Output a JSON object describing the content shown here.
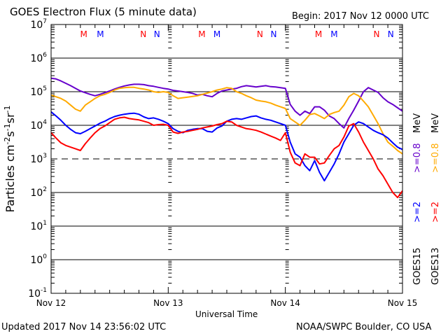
{
  "header": {
    "title": "GOES Electron Flux (5 minute data)",
    "begin": "Begin: 2017 Nov 12 0000 UTC"
  },
  "footer": {
    "updated": "Updated 2017 Nov 14 23:56:02 UTC",
    "credit": "NOAA/SWPC Boulder, CO USA"
  },
  "chart_data": {
    "type": "line",
    "title": "GOES Electron Flux (5 minute data)",
    "xlabel": "Universal Time",
    "ylabel": "Particles cm^-2 s^-1 sr^-1",
    "yscale": "log",
    "ylim_log10": [
      -1,
      7
    ],
    "xlim_hours": [
      0,
      72
    ],
    "x_unit": "hours since 2017 Nov 12 0000 UTC",
    "x_ticks": [
      {
        "hour": 0,
        "label": "Nov 12"
      },
      {
        "hour": 24,
        "label": "Nov 13"
      },
      {
        "hour": 48,
        "label": "Nov 14"
      },
      {
        "hour": 72,
        "label": "Nov 15"
      }
    ],
    "y_ticks": [
      {
        "exp": 7,
        "label": "10",
        "sup": "7"
      },
      {
        "exp": 6,
        "label": "10",
        "sup": "6"
      },
      {
        "exp": 5,
        "label": "10",
        "sup": "5"
      },
      {
        "exp": 4,
        "label": "10",
        "sup": "4"
      },
      {
        "exp": 3,
        "label": "10",
        "sup": "3"
      },
      {
        "exp": 2,
        "label": "10",
        "sup": "2"
      },
      {
        "exp": 1,
        "label": "10",
        "sup": "1"
      },
      {
        "exp": 0,
        "label": "10",
        "sup": "0"
      },
      {
        "exp": -1,
        "label": "10",
        "sup": "-1"
      }
    ],
    "solid_gridlines_log10": [
      6,
      5,
      4,
      2,
      1,
      0
    ],
    "dashed_threshold_log10": 3,
    "mn_markers": [
      {
        "hour": 6.7,
        "label": "M",
        "color": "#ff0000"
      },
      {
        "hour": 10.1,
        "label": "M",
        "color": "#0000ff"
      },
      {
        "hour": 18.9,
        "label": "N",
        "color": "#ff0000"
      },
      {
        "hour": 21.7,
        "label": "N",
        "color": "#0000ff"
      },
      {
        "hour": 30.9,
        "label": "M",
        "color": "#ff0000"
      },
      {
        "hour": 34.0,
        "label": "M",
        "color": "#0000ff"
      },
      {
        "hour": 42.8,
        "label": "N",
        "color": "#ff0000"
      },
      {
        "hour": 45.6,
        "label": "N",
        "color": "#0000ff"
      },
      {
        "hour": 54.8,
        "label": "M",
        "color": "#ff0000"
      },
      {
        "hour": 58.0,
        "label": "M",
        "color": "#0000ff"
      },
      {
        "hour": 66.7,
        "label": "N",
        "color": "#ff0000"
      },
      {
        "hour": 69.6,
        "label": "N",
        "color": "#0000ff"
      }
    ],
    "legend": {
      "placement": "right-vertical",
      "entries": [
        {
          "text": ">=0.8 MeV",
          "satellite": "GOES15",
          "color": "#6600cc"
        },
        {
          "text": ">=0.8 MeV",
          "satellite": "GOES13",
          "color": "#ffaa00"
        },
        {
          "text": ">=2 MeV",
          "satellite": "GOES15",
          "color": "#0000ff"
        },
        {
          "text": ">=2 MeV",
          "satellite": "GOES13",
          "color": "#ff0000"
        }
      ],
      "labels": {
        "mev1": "MeV",
        "mev2": "MeV",
        "e08a": ">=0.8",
        "e08b": ">=0.8",
        "e2a": ">=2",
        "e2b": ">=2",
        "sat15": "GOES15",
        "sat13": "GOES13"
      }
    },
    "series": [
      {
        "name": "GOES15 >=0.8 MeV",
        "color": "#6600cc",
        "hours": [
          0,
          1,
          2,
          3,
          4,
          5,
          6,
          7,
          8,
          9,
          10,
          11,
          12,
          13,
          14,
          15,
          16,
          17,
          18,
          19,
          20,
          21,
          22,
          23,
          24,
          25,
          26,
          27,
          28,
          29,
          30,
          31,
          32,
          33,
          34,
          35,
          36,
          37,
          38,
          39,
          40,
          41,
          42,
          43,
          44,
          45,
          46,
          47,
          48,
          49,
          50,
          51,
          52,
          53,
          54,
          55,
          56,
          57,
          58,
          59,
          60,
          61,
          62,
          63,
          64,
          65,
          66,
          67,
          68,
          69,
          70,
          71,
          72
        ],
        "log10": [
          5.4,
          5.38,
          5.32,
          5.25,
          5.18,
          5.1,
          5.02,
          4.97,
          4.92,
          4.88,
          4.92,
          4.97,
          5.02,
          5.08,
          5.13,
          5.17,
          5.2,
          5.22,
          5.22,
          5.21,
          5.18,
          5.16,
          5.13,
          5.1,
          5.08,
          5.04,
          5.02,
          5.0,
          4.98,
          4.95,
          4.9,
          4.92,
          4.88,
          4.85,
          4.95,
          5.02,
          5.05,
          5.08,
          5.1,
          5.15,
          5.18,
          5.16,
          5.14,
          5.16,
          5.18,
          5.15,
          5.14,
          5.12,
          5.1,
          4.62,
          4.42,
          4.3,
          4.42,
          4.35,
          4.55,
          4.55,
          4.45,
          4.28,
          4.2,
          4.05,
          3.92,
          4.2,
          4.45,
          4.72,
          5.0,
          5.12,
          5.05,
          4.98,
          4.82,
          4.7,
          4.62,
          4.52,
          4.42
        ]
      },
      {
        "name": "GOES13 >=0.8 MeV",
        "color": "#ffaa00",
        "hours": [
          0,
          1,
          2,
          3,
          4,
          5,
          6,
          7,
          8,
          9,
          10,
          11,
          12,
          13,
          14,
          15,
          16,
          17,
          18,
          19,
          20,
          21,
          22,
          23,
          24,
          25,
          26,
          27,
          28,
          29,
          30,
          31,
          32,
          33,
          34,
          35,
          36,
          37,
          38,
          39,
          40,
          41,
          42,
          43,
          44,
          45,
          46,
          47,
          48,
          49,
          50,
          51,
          52,
          53,
          54,
          55,
          56,
          57,
          58,
          59,
          60,
          61,
          62,
          63,
          64,
          65,
          66,
          67,
          68,
          69,
          70,
          71,
          72
        ],
        "log10": [
          4.9,
          4.85,
          4.8,
          4.72,
          4.6,
          4.48,
          4.42,
          4.6,
          4.7,
          4.8,
          4.88,
          4.92,
          4.98,
          5.05,
          5.1,
          5.12,
          5.13,
          5.13,
          5.1,
          5.08,
          5.05,
          5.0,
          4.98,
          5.0,
          4.98,
          4.88,
          4.8,
          4.82,
          4.84,
          4.86,
          4.88,
          4.92,
          4.96,
          5.0,
          5.05,
          5.08,
          5.12,
          5.1,
          5.0,
          4.95,
          4.88,
          4.82,
          4.75,
          4.72,
          4.7,
          4.66,
          4.6,
          4.55,
          4.5,
          4.2,
          4.1,
          4.0,
          4.15,
          4.32,
          4.35,
          4.28,
          4.2,
          4.32,
          4.38,
          4.42,
          4.6,
          4.85,
          4.95,
          4.88,
          4.72,
          4.55,
          4.3,
          4.05,
          3.75,
          3.5,
          3.38,
          3.25,
          3.15
        ]
      },
      {
        "name": "GOES15 >=2 MeV",
        "color": "#0000ff",
        "hours": [
          0,
          1,
          2,
          3,
          4,
          5,
          6,
          7,
          8,
          9,
          10,
          11,
          12,
          13,
          14,
          15,
          16,
          17,
          18,
          19,
          20,
          21,
          22,
          23,
          24,
          25,
          26,
          27,
          28,
          29,
          30,
          31,
          32,
          33,
          34,
          35,
          36,
          37,
          38,
          39,
          40,
          41,
          42,
          43,
          44,
          45,
          46,
          47,
          48,
          49,
          50,
          51,
          52,
          53,
          54,
          55,
          56,
          57,
          58,
          59,
          60,
          61,
          62,
          63,
          64,
          65,
          66,
          67,
          68,
          69,
          70,
          71,
          72
        ],
        "log10": [
          4.4,
          4.28,
          4.15,
          4.0,
          3.88,
          3.78,
          3.75,
          3.82,
          3.9,
          3.98,
          4.06,
          4.12,
          4.2,
          4.26,
          4.3,
          4.33,
          4.35,
          4.36,
          4.33,
          4.25,
          4.2,
          4.22,
          4.18,
          4.12,
          4.05,
          3.9,
          3.82,
          3.78,
          3.85,
          3.88,
          3.9,
          3.9,
          3.82,
          3.8,
          3.92,
          3.98,
          4.12,
          4.18,
          4.2,
          4.18,
          4.22,
          4.26,
          4.28,
          4.22,
          4.18,
          4.15,
          4.1,
          4.05,
          4.0,
          3.5,
          3.15,
          3.05,
          2.8,
          2.65,
          2.95,
          2.6,
          2.35,
          2.6,
          2.85,
          3.15,
          3.5,
          3.75,
          4.0,
          4.1,
          4.05,
          3.95,
          3.85,
          3.78,
          3.72,
          3.62,
          3.48,
          3.35,
          3.28
        ]
      },
      {
        "name": "GOES13 >=2 MeV",
        "color": "#ff0000",
        "hours": [
          0,
          1,
          2,
          3,
          4,
          5,
          6,
          7,
          8,
          9,
          10,
          11,
          12,
          13,
          14,
          15,
          16,
          17,
          18,
          19,
          20,
          21,
          22,
          23,
          24,
          25,
          26,
          27,
          28,
          29,
          30,
          31,
          32,
          33,
          34,
          35,
          36,
          37,
          38,
          39,
          40,
          41,
          42,
          43,
          44,
          45,
          46,
          47,
          48,
          49,
          50,
          51,
          52,
          53,
          54,
          55,
          56,
          57,
          58,
          59,
          60,
          61,
          62,
          63,
          64,
          65,
          66,
          67,
          68,
          69,
          70,
          71,
          72
        ],
        "log10": [
          3.78,
          3.62,
          3.48,
          3.4,
          3.35,
          3.3,
          3.25,
          3.45,
          3.62,
          3.78,
          3.9,
          3.98,
          4.08,
          4.18,
          4.22,
          4.24,
          4.2,
          4.18,
          4.16,
          4.12,
          4.08,
          4.0,
          4.02,
          4.03,
          4.0,
          3.8,
          3.76,
          3.8,
          3.82,
          3.85,
          3.88,
          3.92,
          3.95,
          3.98,
          4.02,
          4.05,
          4.12,
          4.1,
          4.0,
          3.95,
          3.9,
          3.88,
          3.85,
          3.8,
          3.74,
          3.68,
          3.62,
          3.55,
          3.78,
          3.2,
          2.88,
          2.8,
          3.15,
          3.05,
          3.05,
          2.85,
          2.88,
          3.1,
          3.3,
          3.4,
          3.65,
          3.98,
          4.05,
          3.8,
          3.5,
          3.25,
          3.0,
          2.7,
          2.5,
          2.25,
          2.0,
          1.85,
          2.05
        ]
      }
    ]
  }
}
